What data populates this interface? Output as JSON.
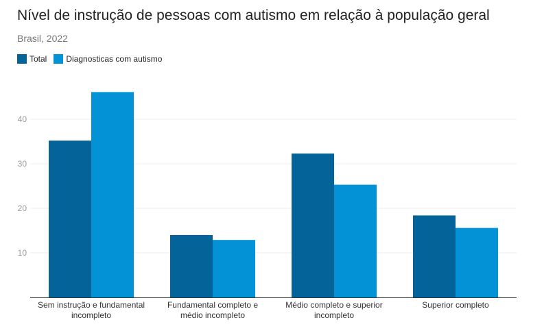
{
  "title": "Nível de instrução de pessoas com autismo em relação à população geral",
  "subtitle": "Brasil, 2022",
  "colors": {
    "total": "#04649a",
    "autism": "#0492d6",
    "grid": "#ececec",
    "axis": "#333333"
  },
  "chart_data": {
    "type": "bar",
    "title": "Nível de instrução de pessoas com autismo em relação à população geral",
    "subtitle": "Brasil, 2022",
    "xlabel": "",
    "ylabel": "",
    "ylim": [
      0,
      50
    ],
    "yticks": [
      10,
      20,
      30,
      40
    ],
    "grid": true,
    "legend_position": "top-left",
    "categories": [
      [
        "Sem instrução e fundamental",
        "incompleto"
      ],
      [
        "Fundamental completo e",
        "médio incompleto"
      ],
      [
        "Médio completo e superior",
        "incompleto"
      ],
      [
        "Superior completo"
      ]
    ],
    "series": [
      {
        "name": "Total",
        "color": "#04649a",
        "values": [
          35.2,
          14.0,
          32.3,
          18.4
        ]
      },
      {
        "name": "Diagnosticas com autismo",
        "color": "#0492d6",
        "values": [
          46.1,
          12.9,
          25.3,
          15.6
        ]
      }
    ]
  }
}
